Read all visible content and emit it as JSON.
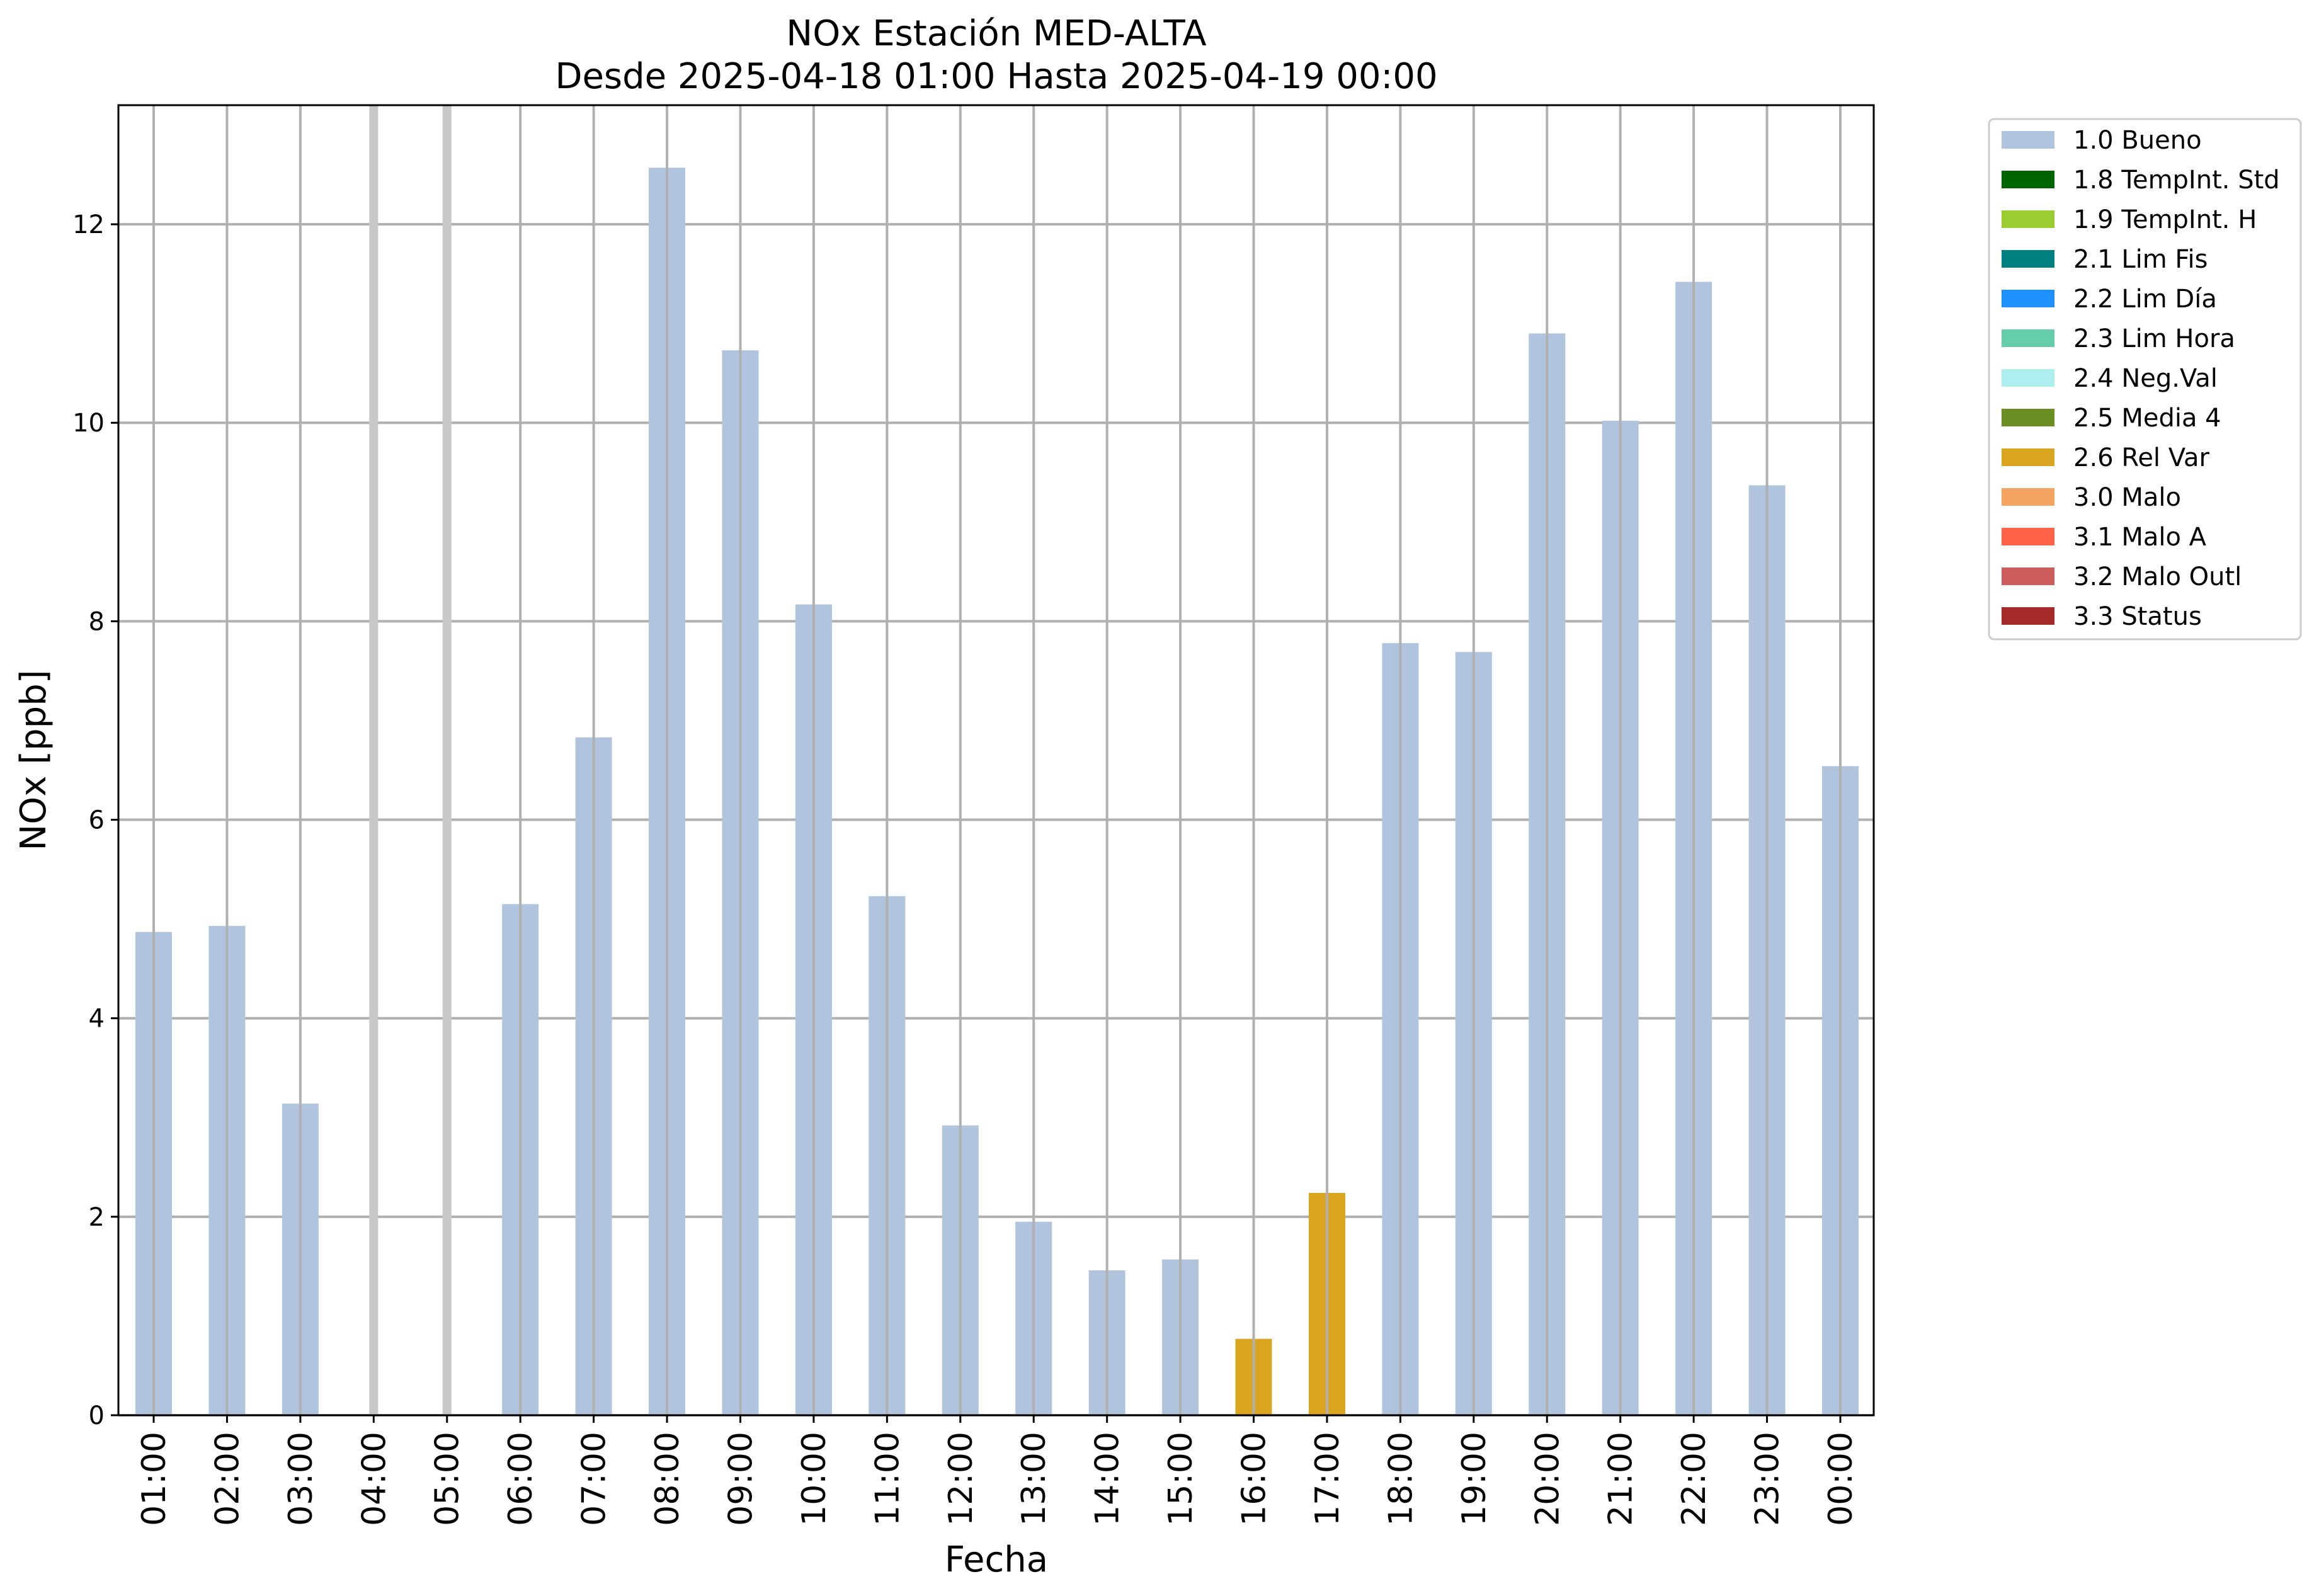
{
  "chart_data": {
    "type": "bar",
    "title": "NOx Estación MED-ALTA",
    "subtitle": "Desde 2025-04-18 01:00 Hasta 2025-04-19 00:00",
    "xlabel": "Fecha",
    "ylabel": "NOx [ppb]",
    "ylim": [
      0,
      13.2
    ],
    "yticks": [
      0,
      2,
      4,
      6,
      8,
      10,
      12
    ],
    "grid": true,
    "legend_position": "outside-right",
    "categories": [
      "01:00",
      "02:00",
      "03:00",
      "04:00",
      "05:00",
      "06:00",
      "07:00",
      "08:00",
      "09:00",
      "10:00",
      "11:00",
      "12:00",
      "13:00",
      "14:00",
      "15:00",
      "16:00",
      "17:00",
      "18:00",
      "19:00",
      "20:00",
      "21:00",
      "22:00",
      "23:00",
      "00:00"
    ],
    "values": [
      4.87,
      4.93,
      3.14,
      null,
      null,
      5.15,
      6.83,
      12.57,
      10.73,
      8.17,
      5.23,
      2.92,
      1.95,
      1.46,
      1.57,
      0.77,
      2.24,
      7.78,
      7.69,
      10.9,
      10.02,
      11.42,
      9.37,
      6.54
    ],
    "flags": [
      "1.0 Bueno",
      "1.0 Bueno",
      "1.0 Bueno",
      null,
      null,
      "1.0 Bueno",
      "1.0 Bueno",
      "1.0 Bueno",
      "1.0 Bueno",
      "1.0 Bueno",
      "1.0 Bueno",
      "1.0 Bueno",
      "1.0 Bueno",
      "1.0 Bueno",
      "1.0 Bueno",
      "2.6 Rel Var",
      "2.6 Rel Var",
      "1.0 Bueno",
      "1.0 Bueno",
      "1.0 Bueno",
      "1.0 Bueno",
      "1.0 Bueno",
      "1.0 Bueno",
      "1.0 Bueno"
    ],
    "legend": [
      {
        "name": "1.0 Bueno",
        "color": "#b0c4de"
      },
      {
        "name": "1.8 TempInt. Std",
        "color": "#006400"
      },
      {
        "name": "1.9 TempInt. H",
        "color": "#9acd32"
      },
      {
        "name": "2.1 Lim Fis",
        "color": "#008080"
      },
      {
        "name": "2.2 Lim Día",
        "color": "#1e90ff"
      },
      {
        "name": "2.3 Lim Hora",
        "color": "#66cdaa"
      },
      {
        "name": "2.4 Neg.Val",
        "color": "#afeeee"
      },
      {
        "name": "2.5 Media 4",
        "color": "#6b8e23"
      },
      {
        "name": "2.6 Rel Var",
        "color": "#daa520"
      },
      {
        "name": "3.0 Malo",
        "color": "#f4a460"
      },
      {
        "name": "3.1 Malo A",
        "color": "#ff6347"
      },
      {
        "name": "3.2 Malo Outl",
        "color": "#cd5c5c"
      },
      {
        "name": "3.3 Status",
        "color": "#a52a2a"
      }
    ]
  }
}
